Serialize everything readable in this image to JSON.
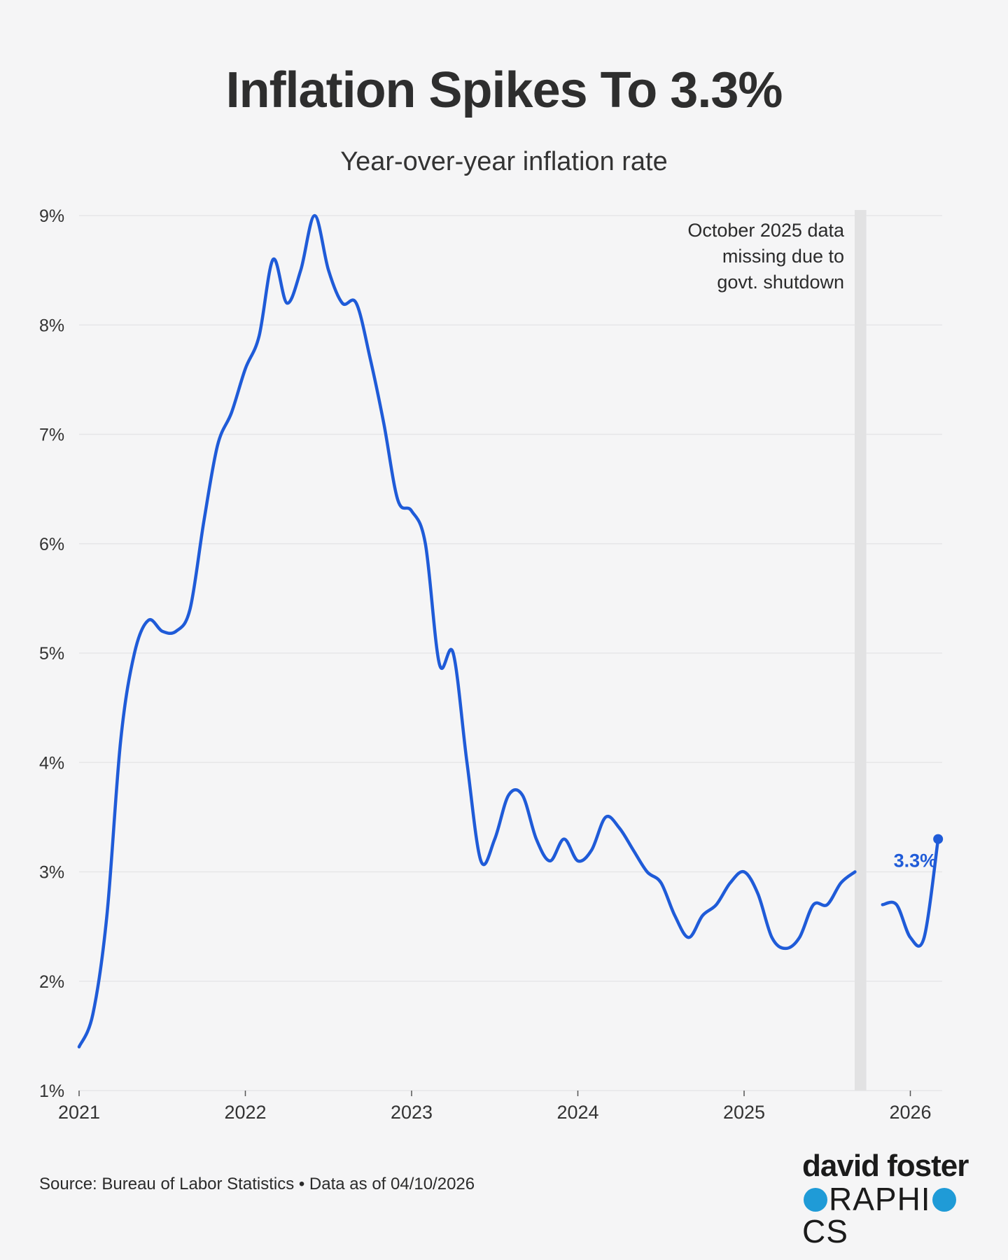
{
  "header": {
    "title": "Inflation Spikes To 3.3%",
    "subtitle": "Year-over-year inflation rate"
  },
  "chart_data": {
    "type": "line",
    "title": "Inflation Spikes To 3.3%",
    "subtitle": "Year-over-year inflation rate",
    "xlabel": "",
    "ylabel": "",
    "ylim": [
      1,
      9
    ],
    "xlim": [
      2021.0,
      2026.2
    ],
    "y_ticks": [
      {
        "value": 1,
        "label": "1%"
      },
      {
        "value": 2,
        "label": "2%"
      },
      {
        "value": 3,
        "label": "3%"
      },
      {
        "value": 4,
        "label": "4%"
      },
      {
        "value": 5,
        "label": "5%"
      },
      {
        "value": 6,
        "label": "6%"
      },
      {
        "value": 7,
        "label": "7%"
      },
      {
        "value": 8,
        "label": "8%"
      },
      {
        "value": 9,
        "label": "9%"
      }
    ],
    "x_ticks": [
      {
        "value": 2021,
        "label": "2021"
      },
      {
        "value": 2022,
        "label": "2022"
      },
      {
        "value": 2023,
        "label": "2023"
      },
      {
        "value": 2024,
        "label": "2024"
      },
      {
        "value": 2025,
        "label": "2025"
      },
      {
        "value": 2026,
        "label": "2026"
      }
    ],
    "grid": true,
    "line_color": "#1f5bd8",
    "band_color": "#e2e2e3",
    "series": [
      {
        "name": "Year-over-year inflation rate",
        "segments": [
          [
            [
              2021.0,
              1.4
            ],
            [
              2021.083,
              1.7
            ],
            [
              2021.167,
              2.6
            ],
            [
              2021.25,
              4.2
            ],
            [
              2021.333,
              5.0
            ],
            [
              2021.417,
              5.3
            ],
            [
              2021.5,
              5.2
            ],
            [
              2021.583,
              5.2
            ],
            [
              2021.667,
              5.4
            ],
            [
              2021.75,
              6.2
            ],
            [
              2021.833,
              6.9
            ],
            [
              2021.917,
              7.2
            ],
            [
              2022.0,
              7.6
            ],
            [
              2022.083,
              7.9
            ],
            [
              2022.167,
              8.6
            ],
            [
              2022.25,
              8.2
            ],
            [
              2022.333,
              8.5
            ],
            [
              2022.417,
              9.0
            ],
            [
              2022.5,
              8.5
            ],
            [
              2022.583,
              8.2
            ],
            [
              2022.667,
              8.2
            ],
            [
              2022.75,
              7.7
            ],
            [
              2022.833,
              7.1
            ],
            [
              2022.917,
              6.4
            ],
            [
              2023.0,
              6.3
            ],
            [
              2023.083,
              6.0
            ],
            [
              2023.167,
              4.9
            ],
            [
              2023.25,
              5.0
            ],
            [
              2023.333,
              4.0
            ],
            [
              2023.417,
              3.1
            ],
            [
              2023.5,
              3.3
            ],
            [
              2023.583,
              3.7
            ],
            [
              2023.667,
              3.7
            ],
            [
              2023.75,
              3.3
            ],
            [
              2023.833,
              3.1
            ],
            [
              2023.917,
              3.3
            ],
            [
              2024.0,
              3.1
            ],
            [
              2024.083,
              3.2
            ],
            [
              2024.167,
              3.5
            ],
            [
              2024.25,
              3.4
            ],
            [
              2024.333,
              3.2
            ],
            [
              2024.417,
              3.0
            ],
            [
              2024.5,
              2.9
            ],
            [
              2024.583,
              2.6
            ],
            [
              2024.667,
              2.4
            ],
            [
              2024.75,
              2.6
            ],
            [
              2024.833,
              2.7
            ],
            [
              2024.917,
              2.9
            ],
            [
              2025.0,
              3.0
            ],
            [
              2025.083,
              2.8
            ],
            [
              2025.167,
              2.4
            ],
            [
              2025.25,
              2.3
            ],
            [
              2025.333,
              2.4
            ],
            [
              2025.417,
              2.7
            ],
            [
              2025.5,
              2.7
            ],
            [
              2025.583,
              2.9
            ],
            [
              2025.667,
              3.0
            ]
          ],
          [
            [
              2025.833,
              2.7
            ],
            [
              2025.917,
              2.7
            ],
            [
              2026.0,
              2.4
            ],
            [
              2026.083,
              2.4
            ],
            [
              2026.167,
              3.3
            ]
          ]
        ]
      }
    ],
    "gap_band": {
      "x_start": 2025.665,
      "x_end": 2025.735
    },
    "annotations": [
      {
        "lines": [
          "October 2025 data",
          "missing due to",
          "govt. shutdown"
        ]
      },
      {
        "text": "3.3%",
        "x": 2026.167,
        "y": 3.3
      }
    ]
  },
  "footer": {
    "source": "Source: Bureau of Labor Statistics • Data as of 04/10/2026",
    "logo_top": "david foster",
    "logo_bottom_pre": "G",
    "logo_bottom_mid": "RAPHI",
    "logo_bottom_post": "CS"
  }
}
